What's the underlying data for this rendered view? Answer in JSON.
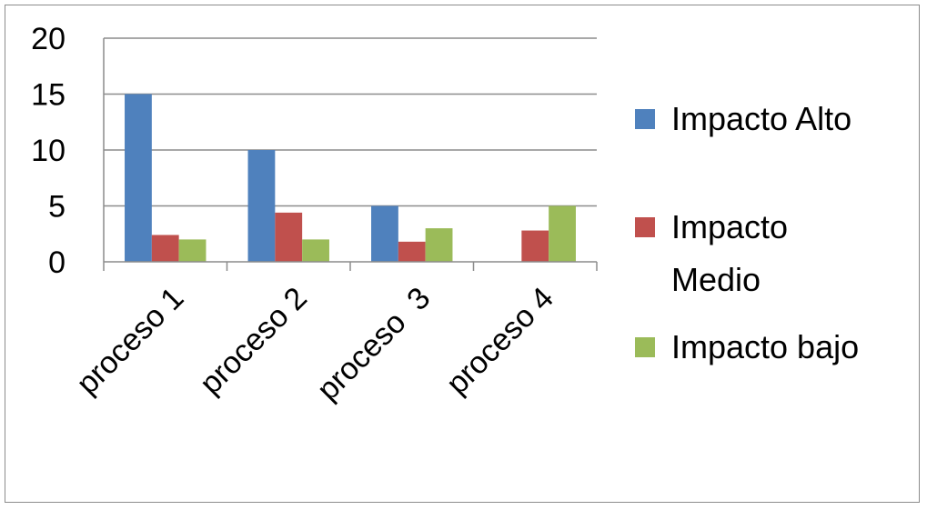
{
  "chart_data": {
    "type": "bar",
    "title": "",
    "xlabel": "",
    "ylabel": "",
    "ylim": [
      0,
      20
    ],
    "yticks": [
      "0",
      "5",
      "10",
      "15",
      "20"
    ],
    "grid": true,
    "legend_position": "right",
    "categories": [
      "proceso 1",
      "proceso 2",
      "proceso  3",
      "proceso 4"
    ],
    "series": [
      {
        "name": "Impacto Alto",
        "color": "#4f81bd",
        "values": [
          15,
          10,
          5,
          0
        ]
      },
      {
        "name": "Impacto Medio",
        "color": "#c0504d",
        "values": [
          2.4,
          4.4,
          1.8,
          2.8
        ]
      },
      {
        "name": "Impacto bajo",
        "color": "#9bbb59",
        "values": [
          2,
          2,
          3,
          5
        ]
      }
    ],
    "legend_lines": [
      [
        "Impacto Alto"
      ],
      [
        "Impacto",
        "Medio"
      ],
      [
        "Impacto bajo"
      ]
    ]
  }
}
